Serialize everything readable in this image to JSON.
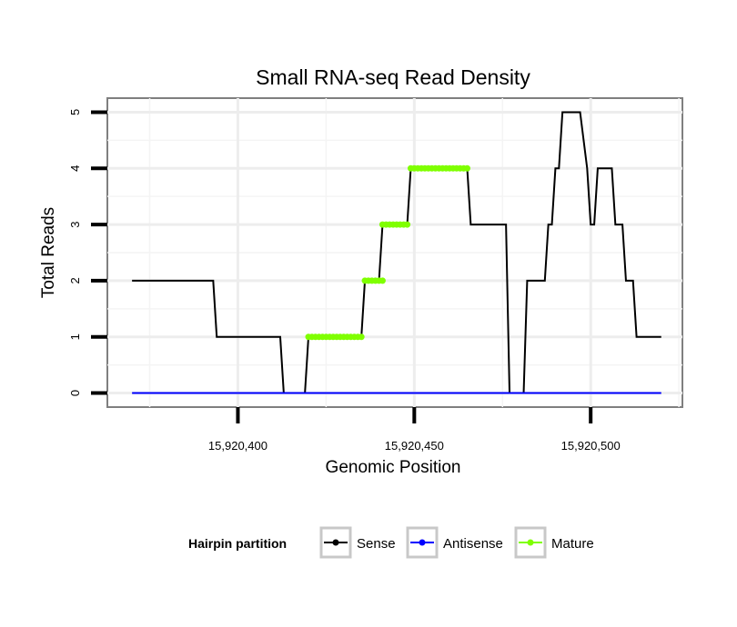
{
  "chart_data": {
    "type": "line",
    "title": "Small RNA-seq Read Density",
    "xlabel": "Genomic Position",
    "ylabel": "Total Reads",
    "xlim": [
      15920363,
      15920526
    ],
    "ylim": [
      -0.25,
      5.25
    ],
    "x_ticks": [
      15920400,
      15920450,
      15920500
    ],
    "x_tick_labels": [
      "15,920,400",
      "15,920,450",
      "15,920,500"
    ],
    "y_ticks": [
      0,
      1,
      2,
      3,
      4,
      5
    ],
    "y_tick_labels": [
      "0",
      "1",
      "2",
      "3",
      "4",
      "5"
    ],
    "grid": true,
    "legend": {
      "title": "Hairpin partition",
      "position": "bottom",
      "entries": [
        "Sense",
        "Antisense",
        "Mature"
      ]
    },
    "series": [
      {
        "name": "Sense",
        "color": "#000000",
        "points": [
          [
            15920370,
            2
          ],
          [
            15920393,
            2
          ],
          [
            15920394,
            1
          ],
          [
            15920412,
            1
          ],
          [
            15920413,
            0
          ],
          [
            15920419,
            0
          ],
          [
            15920420,
            1
          ],
          [
            15920435,
            1
          ],
          [
            15920436,
            2
          ],
          [
            15920440,
            2
          ],
          [
            15920441,
            3
          ],
          [
            15920448,
            3
          ],
          [
            15920449,
            4
          ],
          [
            15920465,
            4
          ],
          [
            15920466,
            3
          ],
          [
            15920476,
            3
          ],
          [
            15920477,
            0
          ],
          [
            15920481,
            0
          ],
          [
            15920482,
            2
          ],
          [
            15920487,
            2
          ],
          [
            15920488,
            3
          ],
          [
            15920489,
            3
          ],
          [
            15920490,
            4
          ],
          [
            15920491,
            4
          ],
          [
            15920492,
            5
          ],
          [
            15920497,
            5
          ],
          [
            15920499,
            4
          ],
          [
            15920500,
            3
          ],
          [
            15920501,
            3
          ],
          [
            15920502,
            4
          ],
          [
            15920506,
            4
          ],
          [
            15920507,
            3
          ],
          [
            15920509,
            3
          ],
          [
            15920510,
            2
          ],
          [
            15920512,
            2
          ],
          [
            15920513,
            1
          ],
          [
            15920520,
            1
          ]
        ]
      },
      {
        "name": "Antisense",
        "color": "#0000ff",
        "points": [
          [
            15920370,
            0
          ],
          [
            15920520,
            0
          ]
        ]
      },
      {
        "name": "Mature",
        "color": "#7fff00",
        "segments": [
          {
            "x": [
              15920420,
              15920435
            ],
            "y": 1
          },
          {
            "x": [
              15920436,
              15920441
            ],
            "y": 2
          },
          {
            "x": [
              15920441,
              15920448
            ],
            "y": 3
          },
          {
            "x": [
              15920449,
              15920465
            ],
            "y": 4
          }
        ]
      }
    ]
  }
}
